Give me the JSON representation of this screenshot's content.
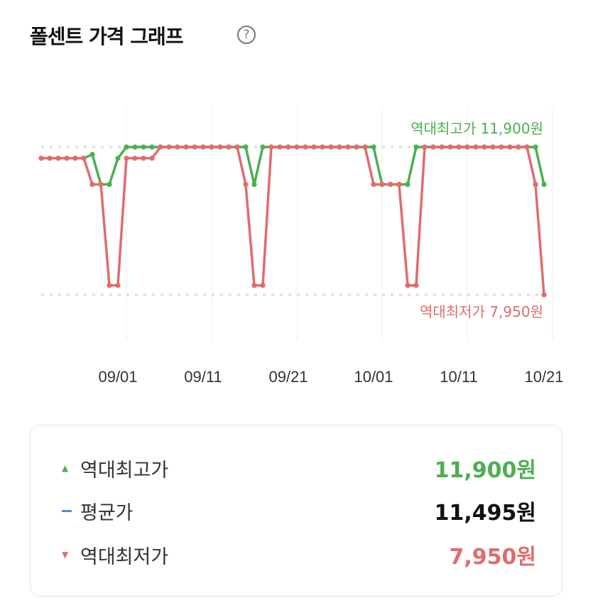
{
  "header": {
    "title": "폴센트 가격 그래프",
    "help_icon": "question-circle-icon"
  },
  "colors": {
    "high": "#4caf50",
    "low": "#e06c6c",
    "avg": "#4a8fe0"
  },
  "chart_data": {
    "type": "line",
    "x": [
      "08/22",
      "08/23",
      "08/24",
      "08/25",
      "08/26",
      "08/27",
      "08/28",
      "08/29",
      "08/30",
      "08/31",
      "09/01",
      "09/02",
      "09/03",
      "09/04",
      "09/05",
      "09/06",
      "09/07",
      "09/08",
      "09/09",
      "09/10",
      "09/11",
      "09/12",
      "09/13",
      "09/14",
      "09/15",
      "09/16",
      "09/17",
      "09/18",
      "09/19",
      "09/20",
      "09/21",
      "09/22",
      "09/23",
      "09/24",
      "09/25",
      "09/26",
      "09/27",
      "09/28",
      "09/29",
      "09/30",
      "10/01",
      "10/02",
      "10/03",
      "10/04",
      "10/05",
      "10/06",
      "10/07",
      "10/08",
      "10/09",
      "10/10",
      "10/11",
      "10/12",
      "10/13",
      "10/14",
      "10/15",
      "10/16",
      "10/17",
      "10/18",
      "10/19",
      "10/20"
    ],
    "xticks": [
      "09/01",
      "09/11",
      "09/21",
      "10/01",
      "10/11",
      "10/21"
    ],
    "series": [
      {
        "color": "#4caf50",
        "values": [
          11600,
          11600,
          11600,
          11600,
          11600,
          11600,
          11700,
          10900,
          10900,
          11600,
          11900,
          11900,
          11900,
          11900,
          11900,
          11900,
          11900,
          11900,
          11900,
          11900,
          11900,
          11900,
          11900,
          11900,
          11900,
          10900,
          11900,
          11900,
          11900,
          11900,
          11900,
          11900,
          11900,
          11900,
          11900,
          11900,
          11900,
          11900,
          11900,
          11900,
          10900,
          10900,
          10900,
          10900,
          11900,
          11900,
          11900,
          11900,
          11900,
          11900,
          11900,
          11900,
          11900,
          11900,
          11900,
          11900,
          11900,
          11900,
          11900,
          10900
        ]
      },
      {
        "color": "#e06c6c",
        "values": [
          11600,
          11600,
          11600,
          11600,
          11600,
          11600,
          10900,
          10900,
          8200,
          8200,
          11600,
          11600,
          11600,
          11600,
          11900,
          11900,
          11900,
          11900,
          11900,
          11900,
          11900,
          11900,
          11900,
          11900,
          10900,
          8200,
          8200,
          11900,
          11900,
          11900,
          11900,
          11900,
          11900,
          11900,
          11900,
          11900,
          11900,
          11900,
          11900,
          10900,
          10900,
          10900,
          10900,
          8200,
          8200,
          11900,
          11900,
          11900,
          11900,
          11900,
          11900,
          11900,
          11900,
          11900,
          11900,
          11900,
          11900,
          11900,
          10900,
          7950
        ]
      }
    ],
    "ylim": [
      7950,
      11900
    ],
    "grid": "vertical",
    "annotations": {
      "high_label": "역대최고가 11,900원",
      "high_value": 11900,
      "low_label": "역대최저가 7,950원",
      "low_value": 7950
    }
  },
  "summary": {
    "high": {
      "label": "역대최고가",
      "value": "11,900원"
    },
    "avg": {
      "label": "평균가",
      "value": "11,495원"
    },
    "low": {
      "label": "역대최저가",
      "value": "7,950원"
    }
  }
}
